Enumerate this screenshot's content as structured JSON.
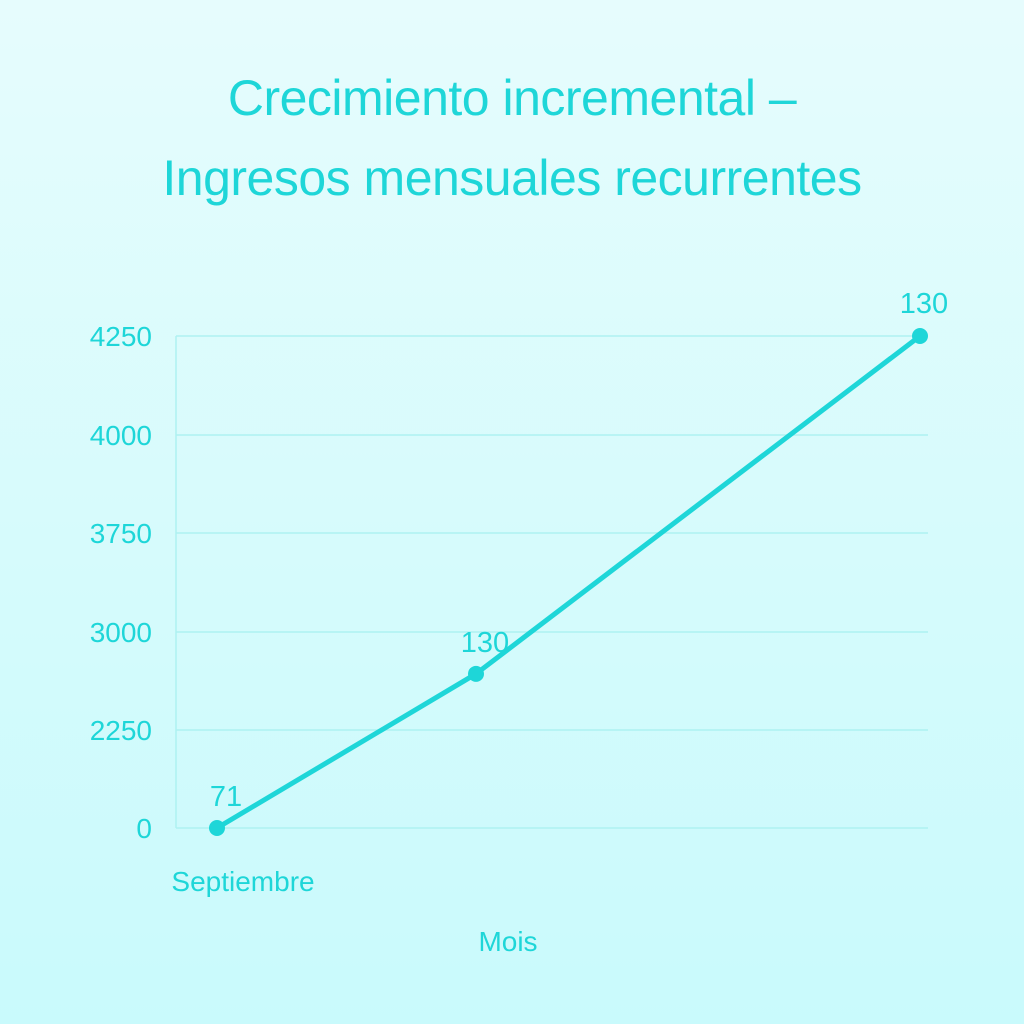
{
  "chart_data": {
    "type": "line",
    "title": [
      "Crecimiento incremental –",
      "Ingresos mensuales recurrentes"
    ],
    "xlabel": "Mois",
    "ylabel": "",
    "x_tick_labels": [
      "Septiembre"
    ],
    "y_ticks": [
      0,
      2250,
      3000,
      3750,
      4000,
      4250
    ],
    "series": [
      {
        "points": [
          {
            "label": "71",
            "y": 0
          },
          {
            "label": "130",
            "y": 2680
          },
          {
            "label": "130",
            "y": 4250
          }
        ]
      }
    ],
    "grid": true,
    "colors": {
      "line": "#1ed6d8",
      "text": "#1ed6d8",
      "grid": "#aef2f1"
    }
  }
}
